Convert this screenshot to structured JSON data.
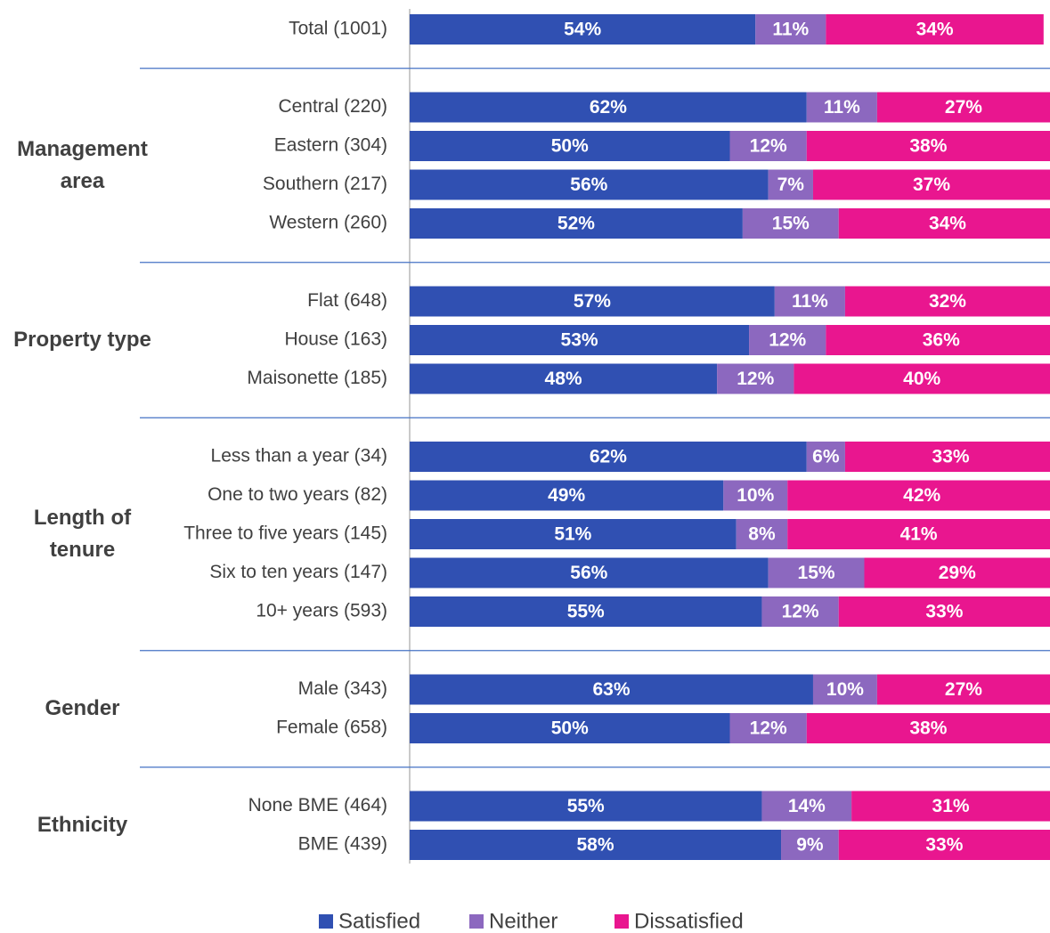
{
  "chart_data": {
    "type": "stacked_bar_horizontal",
    "categories": [
      "Total (1001)",
      "Central (220)",
      "Eastern (304)",
      "Southern (217)",
      "Western (260)",
      "Flat (648)",
      "House (163)",
      "Maisonette (185)",
      "Less than a year (34)",
      "One to two years (82)",
      "Three to five years (145)",
      "Six to ten years (147)",
      "10+ years (593)",
      "Male (343)",
      "Female (658)",
      "None BME (464)",
      "BME (439)"
    ],
    "groups": [
      {
        "label": "Management area",
        "count": 4
      },
      {
        "label": "Property type",
        "count": 3
      },
      {
        "label": "Length of tenure",
        "count": 5
      },
      {
        "label": "Gender",
        "count": 2
      },
      {
        "label": "Ethnicity",
        "count": 2
      }
    ],
    "xlim": [
      0,
      100
    ],
    "series": [
      {
        "name": "Satisfied",
        "color": "#3050b2",
        "values": [
          54,
          62,
          50,
          56,
          52,
          57,
          53,
          48,
          62,
          49,
          51,
          56,
          55,
          63,
          50,
          55,
          58
        ],
        "value_labels": [
          "54%",
          "62%",
          "50%",
          "56%",
          "52%",
          "57%",
          "53%",
          "48%",
          "62%",
          "49%",
          "51%",
          "56%",
          "55%",
          "63%",
          "50%",
          "55%",
          "58%"
        ]
      },
      {
        "name": "Neither",
        "color": "#8c68bf",
        "values": [
          11,
          11,
          12,
          7,
          15,
          11,
          12,
          12,
          6,
          10,
          8,
          15,
          12,
          10,
          12,
          14,
          9
        ],
        "value_labels": [
          "11%",
          "11%",
          "12%",
          "7%",
          "15%",
          "11%",
          "12%",
          "12%",
          "6%",
          "10%",
          "8%",
          "15%",
          "12%",
          "10%",
          "12%",
          "14%",
          "9%"
        ]
      },
      {
        "name": "Dissatisfied",
        "color": "#e9168f",
        "values": [
          34,
          27,
          38,
          37,
          34,
          32,
          36,
          40,
          33,
          42,
          41,
          29,
          33,
          27,
          38,
          31,
          33
        ],
        "value_labels": [
          "34%",
          "27%",
          "38%",
          "37%",
          "34%",
          "32%",
          "36%",
          "40%",
          "33%",
          "42%",
          "41%",
          "29%",
          "33%",
          "27%",
          "38%",
          "31%",
          "33%"
        ]
      }
    ]
  }
}
